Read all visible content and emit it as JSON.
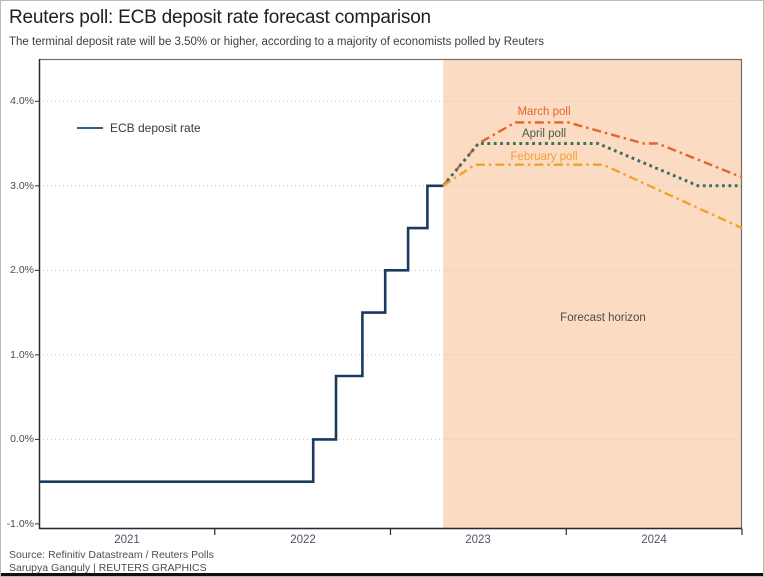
{
  "header": {
    "title": "Reuters poll: ECB deposit rate forecast comparison",
    "subtitle": "The terminal deposit rate will be 3.50% or higher, according to a majority of economists polled by Reuters"
  },
  "footer": {
    "source": "Source: Refinitiv Datastream / Reuters Polls",
    "byline": "Sarupya Ganguly | REUTERS GRAPHICS"
  },
  "chart_data": {
    "type": "line",
    "title": "Reuters poll: ECB deposit rate forecast comparison",
    "x_axis": {
      "range_years": [
        2021,
        2025
      ],
      "labels": [
        "2021",
        "2022",
        "2023",
        "2024"
      ],
      "tick_years": [
        2022,
        2023,
        2024,
        2025
      ],
      "grid": false
    },
    "y_axis": {
      "range_pct": [
        -1.06,
        4.5
      ],
      "labels": [
        "4.0%",
        "3.0%",
        "2.0%",
        "1.0%",
        "0.0%",
        "-1.0%"
      ],
      "label_pct": [
        4.0,
        3.0,
        2.0,
        1.0,
        0.0,
        -1.0
      ],
      "gridlines_pct": [
        4.0,
        3.0,
        2.0,
        1.0,
        0.0
      ],
      "grid_style": "dotted"
    },
    "forecast_region": {
      "label": "Forecast horizon",
      "start_year": 2023.3,
      "end_year": 2025.0,
      "fill": "#fbdcc2"
    },
    "legend": {
      "label": "ECB deposit rate",
      "color": "#35618c",
      "position": "top-left-inside"
    },
    "series": [
      {
        "id": "ecb-deposit-rate",
        "name": "ECB deposit rate",
        "color": "#1b3a60",
        "style": "solid",
        "width": 2.6,
        "points": [
          [
            2021.0,
            -0.5
          ],
          [
            2022.56,
            -0.5
          ],
          [
            2022.56,
            0.0
          ],
          [
            2022.69,
            0.0
          ],
          [
            2022.69,
            0.75
          ],
          [
            2022.84,
            0.75
          ],
          [
            2022.84,
            1.5
          ],
          [
            2022.97,
            1.5
          ],
          [
            2022.97,
            2.0
          ],
          [
            2023.1,
            2.0
          ],
          [
            2023.1,
            2.5
          ],
          [
            2023.21,
            2.5
          ],
          [
            2023.21,
            3.0
          ],
          [
            2023.3,
            3.0
          ]
        ]
      },
      {
        "id": "march-poll",
        "name": "March poll",
        "color": "#e0662e",
        "style": "dash-dot",
        "width": 2.4,
        "points": [
          [
            2023.3,
            3.0
          ],
          [
            2023.5,
            3.5
          ],
          [
            2023.71,
            3.75
          ],
          [
            2024.01,
            3.75
          ],
          [
            2024.44,
            3.5
          ],
          [
            2024.52,
            3.5
          ],
          [
            2025.0,
            3.1
          ]
        ]
      },
      {
        "id": "april-poll",
        "name": "April poll",
        "color": "#3e6f63",
        "style": "dotted",
        "width": 3,
        "points": [
          [
            2023.3,
            3.0
          ],
          [
            2023.5,
            3.5
          ],
          [
            2024.18,
            3.5
          ],
          [
            2024.75,
            3.0
          ],
          [
            2025.0,
            3.0
          ]
        ]
      },
      {
        "id": "february-poll",
        "name": "February poll",
        "color": "#f0a132",
        "style": "dash-dot",
        "width": 2.4,
        "points": [
          [
            2023.3,
            3.0
          ],
          [
            2023.48,
            3.25
          ],
          [
            2024.21,
            3.25
          ],
          [
            2025.0,
            2.5
          ]
        ]
      }
    ],
    "annotations": {
      "march_label": "March poll",
      "april_label": "April poll",
      "february_label": "February poll",
      "forecast_label": "Forecast horizon"
    },
    "colors": {
      "grid": "#c8c8c8",
      "axis": "#2b2b2b",
      "plot_border": "#6e6f71",
      "april_label_text": "#4e584f",
      "forecast_label_text": "#4c4c4c"
    }
  }
}
